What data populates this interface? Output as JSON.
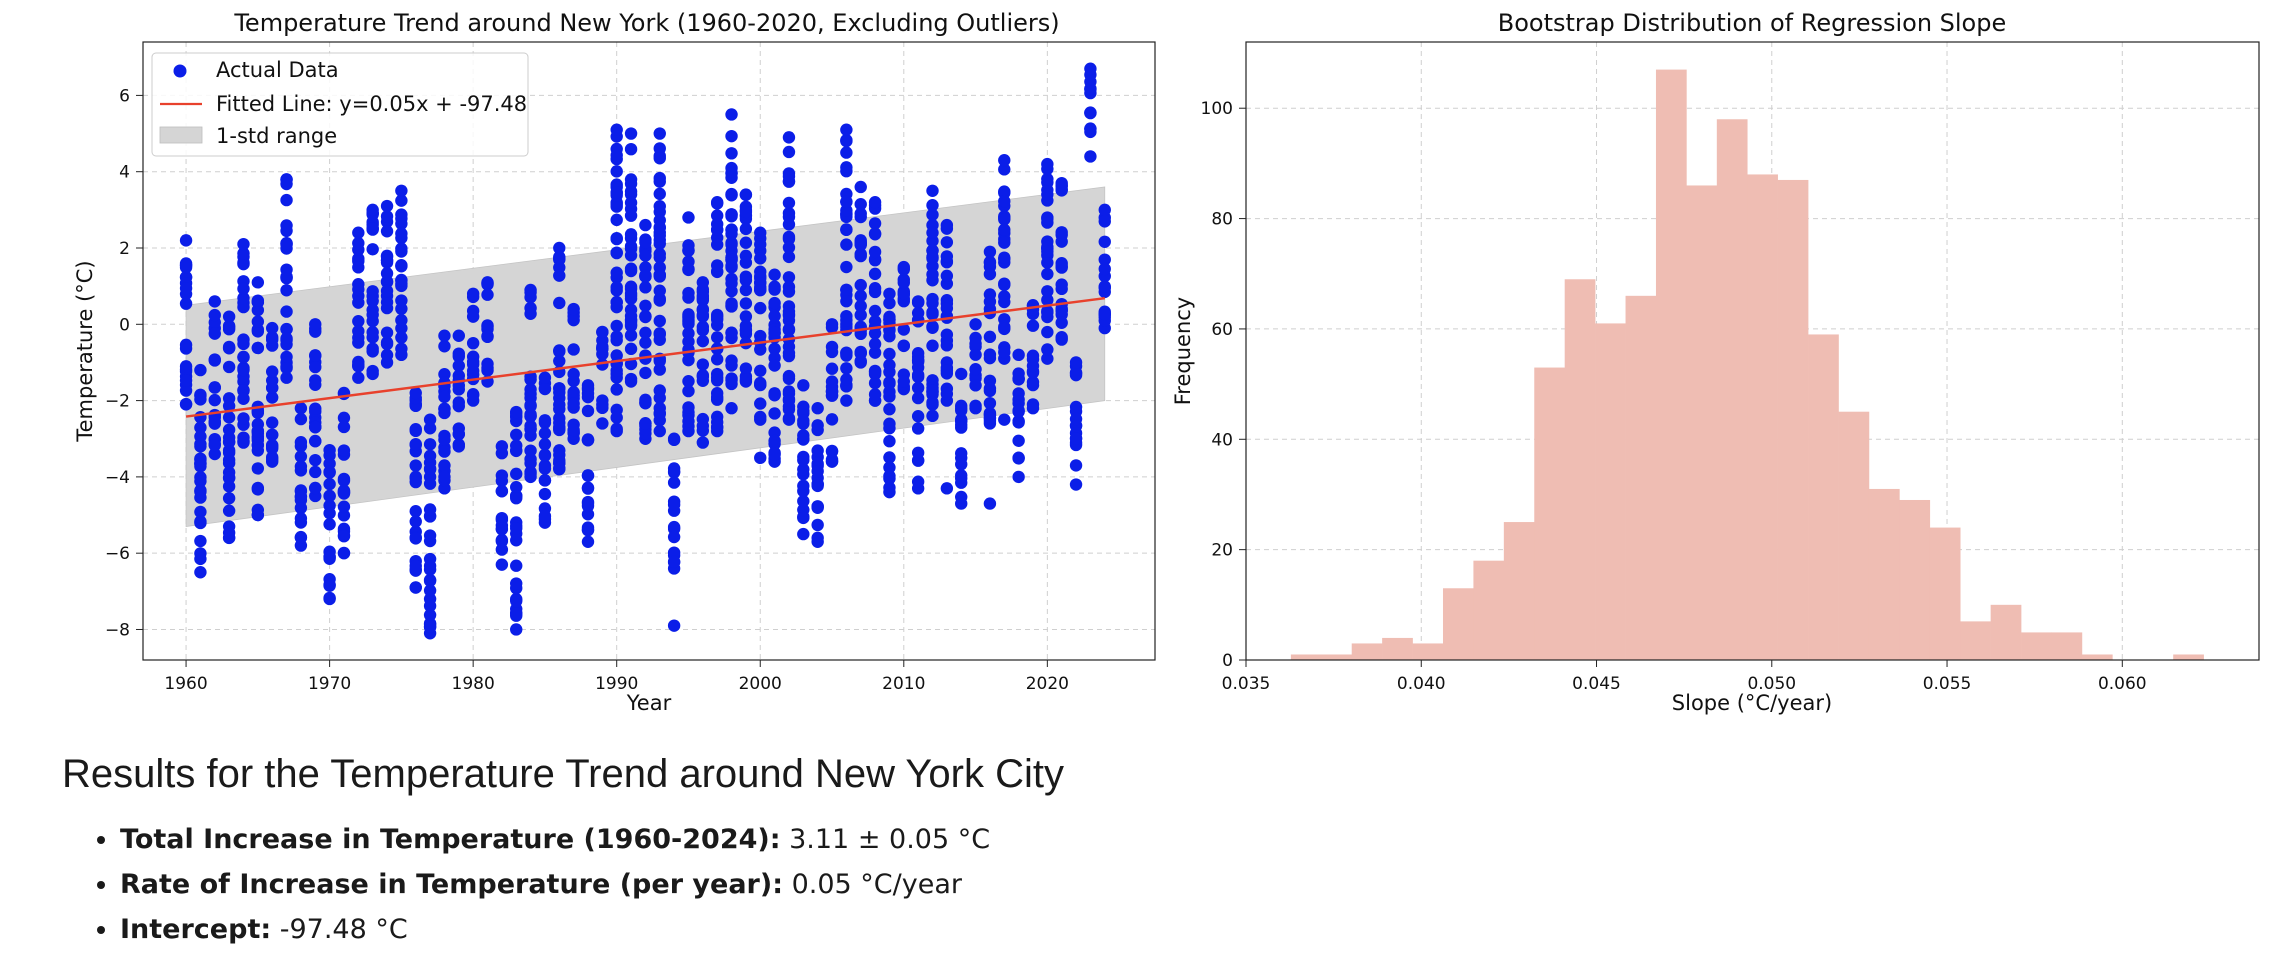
{
  "chart_data": [
    {
      "type": "scatter",
      "title": "Temperature Trend around New York (1960-2020, Excluding Outliers)",
      "xlabel": "Year",
      "ylabel": "Temperature (°C)",
      "xlim": [
        1957,
        2027.5
      ],
      "ylim": [
        -8.8,
        7.4
      ],
      "xticks": [
        1960,
        1970,
        1980,
        1990,
        2000,
        2010,
        2020
      ],
      "yticks": [
        -8,
        -6,
        -4,
        -2,
        0,
        2,
        4,
        6
      ],
      "grid": true,
      "legend_position": "top-left",
      "legend": [
        "Actual Data",
        "Fitted Line: y=0.05x + -97.48",
        "1-std range"
      ],
      "fitted_line": {
        "slope": 0.0485,
        "intercept": -97.48,
        "x_range": [
          1960,
          2024
        ]
      },
      "std_band": {
        "x": [
          1960,
          2024
        ],
        "lower": [
          -5.3,
          -2.0
        ],
        "upper": [
          0.5,
          3.6
        ]
      },
      "series": [
        {
          "name": "Actual Data",
          "year_ranges": [
            [
              1960,
              -2.1,
              2.2
            ],
            [
              1961,
              -6.5,
              -1.2
            ],
            [
              1962,
              -3.4,
              0.6
            ],
            [
              1963,
              -5.6,
              0.2
            ],
            [
              1964,
              -3.1,
              2.1
            ],
            [
              1965,
              -5.0,
              1.1
            ],
            [
              1966,
              -3.6,
              -0.1
            ],
            [
              1967,
              -1.4,
              3.8
            ],
            [
              1968,
              -5.8,
              -2.2
            ],
            [
              1969,
              -4.5,
              0.0
            ],
            [
              1970,
              -7.2,
              -3.3
            ],
            [
              1971,
              -6.0,
              -1.8
            ],
            [
              1972,
              -1.4,
              2.4
            ],
            [
              1973,
              -1.3,
              3.0
            ],
            [
              1974,
              -1.0,
              3.1
            ],
            [
              1975,
              -0.8,
              3.5
            ],
            [
              1976,
              -6.9,
              -1.8
            ],
            [
              1977,
              -8.1,
              -2.5
            ],
            [
              1978,
              -4.3,
              -0.3
            ],
            [
              1979,
              -3.2,
              -0.3
            ],
            [
              1980,
              -2.0,
              0.8
            ],
            [
              1981,
              -1.5,
              1.1
            ],
            [
              1982,
              -6.3,
              -3.2
            ],
            [
              1983,
              -8.0,
              -2.3
            ],
            [
              1984,
              -4.0,
              0.9
            ],
            [
              1985,
              -5.2,
              -1.4
            ],
            [
              1986,
              -3.8,
              2.0
            ],
            [
              1987,
              -3.0,
              0.4
            ],
            [
              1988,
              -5.7,
              -1.6
            ],
            [
              1989,
              -2.6,
              -0.2
            ],
            [
              1990,
              -2.8,
              5.1
            ],
            [
              1991,
              -1.5,
              5.0
            ],
            [
              1992,
              -3.0,
              2.6
            ],
            [
              1993,
              -2.8,
              5.0
            ],
            [
              1994,
              -6.4,
              -3.0
            ],
            [
              1995,
              -2.8,
              2.8
            ],
            [
              1996,
              -3.1,
              1.1
            ],
            [
              1997,
              -2.8,
              3.2
            ],
            [
              1998,
              -2.2,
              5.5
            ],
            [
              1999,
              -1.5,
              3.4
            ],
            [
              2000,
              -2.5,
              2.4
            ],
            [
              2001,
              -3.6,
              1.3
            ],
            [
              2002,
              -2.5,
              4.9
            ],
            [
              2003,
              -5.5,
              -1.6
            ],
            [
              2004,
              -5.7,
              -2.2
            ],
            [
              2005,
              -3.6,
              0.0
            ],
            [
              2006,
              -2.0,
              5.1
            ],
            [
              2007,
              -1.0,
              3.6
            ],
            [
              2008,
              -2.0,
              3.2
            ],
            [
              2009,
              -4.4,
              0.8
            ],
            [
              2010,
              -1.7,
              1.5
            ],
            [
              2011,
              -4.3,
              0.6
            ],
            [
              2012,
              -2.4,
              3.5
            ],
            [
              2013,
              -2.0,
              2.6
            ],
            [
              2014,
              -4.7,
              -1.3
            ],
            [
              2015,
              -2.2,
              0.0
            ],
            [
              2016,
              -2.6,
              1.9
            ],
            [
              2017,
              -0.9,
              4.3
            ],
            [
              2018,
              -4.0,
              -0.8
            ],
            [
              2019,
              -2.1,
              0.5
            ],
            [
              2020,
              -0.9,
              4.2
            ],
            [
              2021,
              -0.4,
              3.7
            ],
            [
              2022,
              -4.2,
              -1.0
            ],
            [
              2023,
              4.4,
              6.7
            ],
            [
              2024,
              -0.1,
              3.0
            ]
          ]
        }
      ],
      "extra_points": [
        [
          1994,
          -7.9
        ],
        [
          2022,
          -3.0
        ],
        [
          2000,
          -3.5
        ],
        [
          2017,
          -2.5
        ],
        [
          2016,
          -4.7
        ],
        [
          2013,
          -4.3
        ],
        [
          1999,
          2.5
        ],
        [
          2002,
          -2.0
        ],
        [
          2007,
          2.9
        ],
        [
          2019,
          -2.2
        ]
      ]
    },
    {
      "type": "histogram",
      "title": "Bootstrap Distribution of Regression Slope",
      "xlabel": "Slope (°C/year)",
      "ylabel": "Frequency",
      "xlim": [
        0.035,
        0.0639
      ],
      "ylim": [
        0,
        112
      ],
      "xticks": [
        0.035,
        0.04,
        0.045,
        0.05,
        0.055,
        0.06
      ],
      "xtick_labels": [
        "0.035",
        "0.040",
        "0.045",
        "0.050",
        "0.055",
        "0.060"
      ],
      "yticks": [
        0,
        20,
        40,
        60,
        80,
        100
      ],
      "grid": true,
      "bar_color": "#efbdb3",
      "bin_start": 0.03628,
      "bin_width": 0.000868,
      "counts": [
        1,
        1,
        3,
        4,
        3,
        13,
        18,
        25,
        53,
        69,
        61,
        66,
        107,
        86,
        98,
        88,
        87,
        59,
        45,
        31,
        29,
        24,
        7,
        10,
        5,
        5,
        1,
        0,
        0,
        1
      ]
    }
  ],
  "results": {
    "heading": "Results for the Temperature Trend around New York City",
    "items": [
      {
        "label": "Total Increase in Temperature (1960-2024):",
        "value": " 3.11 ± 0.05 °C"
      },
      {
        "label": "Rate of Increase in Temperature (per year):",
        "value": " 0.05 °C/year"
      },
      {
        "label": "Intercept:",
        "value": " -97.48 °C"
      }
    ]
  },
  "colors": {
    "scatter": "#0b1ee8",
    "fit_line": "#e8412c",
    "band": "#d5d5d5",
    "histogram": "#efbdb3",
    "grid": "#cfcfcf"
  }
}
